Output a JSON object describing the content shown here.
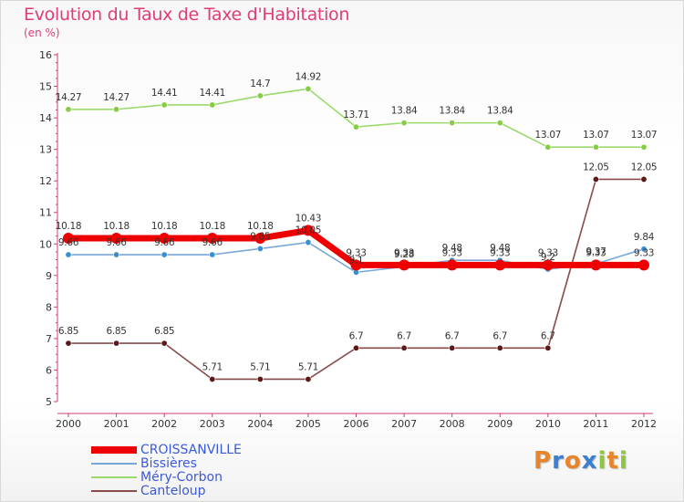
{
  "title": "Evolution du Taux de Taxe d'Habitation",
  "unit_label": "(en %)",
  "logo": {
    "letters": [
      "P",
      "r",
      "o",
      "x",
      "i",
      "t",
      "i"
    ],
    "colors": [
      "#e8842a",
      "#3a7fd0",
      "#e8842a",
      "#3a7fd0",
      "#8dc63f",
      "#e8842a",
      "#8dc63f"
    ]
  },
  "chart_data": {
    "type": "line",
    "title": "Evolution du Taux de Taxe d'Habitation",
    "ylabel": "(en %)",
    "xlabel": "",
    "x": [
      2000,
      2001,
      2002,
      2003,
      2004,
      2005,
      2006,
      2007,
      2008,
      2009,
      2010,
      2011,
      2012
    ],
    "ylim": [
      5,
      16
    ],
    "yticks": [
      5,
      6,
      7,
      8,
      9,
      10,
      11,
      12,
      13,
      14,
      15,
      16
    ],
    "grid": false,
    "legend_position": "bottom-left",
    "series": [
      {
        "name": "CROISSANVILLE",
        "color": "#ee0000",
        "stroke_width": 7,
        "marker_color": "#ee0000",
        "label_color": "#333333",
        "values": [
          10.18,
          10.18,
          10.18,
          10.18,
          10.18,
          10.43,
          9.33,
          9.33,
          9.33,
          9.33,
          9.33,
          9.33,
          9.33
        ],
        "labels": [
          "10.18",
          "10.18",
          "10.18",
          "10.18",
          "10.18",
          "10.43",
          "9.33",
          "9.33",
          "9.33",
          "9.33",
          "9.33",
          "9.33",
          "9.33"
        ]
      },
      {
        "name": "Bissières",
        "color": "#78a8d8",
        "stroke_width": 1.6,
        "marker_color": "#3a8fd0",
        "label_color": "#333333",
        "values": [
          9.66,
          9.66,
          9.66,
          9.66,
          9.85,
          10.05,
          9.1,
          9.28,
          9.48,
          9.48,
          9.2,
          9.37,
          9.84
        ],
        "labels": [
          "9.66",
          "9.66",
          "9.66",
          "9.66",
          "9.85",
          "10.05",
          "9.1",
          "9.28",
          "9.48",
          "9.48",
          "9.2",
          "9.37",
          "9.84"
        ]
      },
      {
        "name": "Méry-Corbon",
        "color": "#9ada6a",
        "stroke_width": 1.6,
        "marker_color": "#88cc44",
        "label_color": "#333333",
        "values": [
          14.27,
          14.27,
          14.41,
          14.41,
          14.7,
          14.92,
          13.71,
          13.84,
          13.84,
          13.84,
          13.07,
          13.07,
          13.07
        ],
        "labels": [
          "14.27",
          "14.27",
          "14.41",
          "14.41",
          "14.7",
          "14.92",
          "13.71",
          "13.84",
          "13.84",
          "13.84",
          "13.07",
          "13.07",
          "13.07"
        ]
      },
      {
        "name": "Canteloup",
        "color": "#8a4a4a",
        "stroke_width": 1.6,
        "marker_color": "#5a1a1a",
        "label_color": "#333333",
        "values": [
          6.85,
          6.85,
          6.85,
          5.71,
          5.71,
          5.71,
          6.7,
          6.7,
          6.7,
          6.7,
          6.7,
          12.05,
          12.05
        ],
        "labels": [
          "6.85",
          "6.85",
          "6.85",
          "5.71",
          "5.71",
          "5.71",
          "6.7",
          "6.7",
          "6.7",
          "6.7",
          "6.7",
          "12.05",
          "12.05"
        ]
      }
    ]
  }
}
